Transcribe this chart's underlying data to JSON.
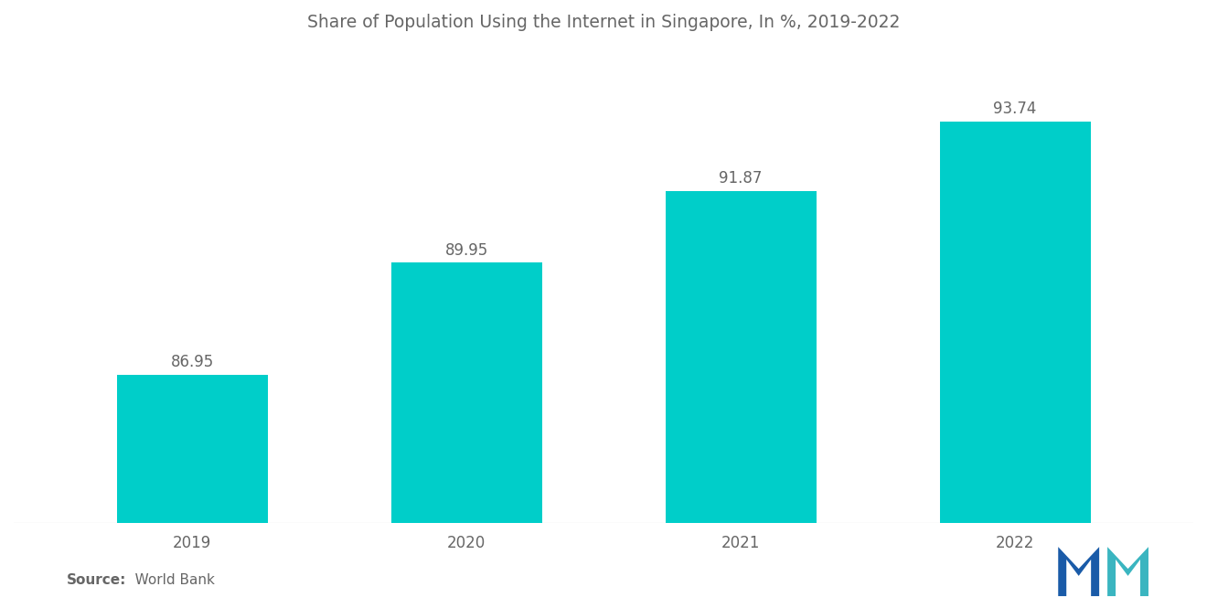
{
  "title": "Share of Population Using the Internet in Singapore, In %, 2019-2022",
  "categories": [
    "2019",
    "2020",
    "2021",
    "2022"
  ],
  "values": [
    86.95,
    89.95,
    91.87,
    93.74
  ],
  "bar_color": "#00CEC9",
  "value_labels": [
    "86.95",
    "89.95",
    "91.87",
    "93.74"
  ],
  "ylim_min": 83.0,
  "ylim_max": 95.5,
  "title_fontsize": 13.5,
  "label_fontsize": 12,
  "tick_fontsize": 12,
  "source_bold": "Source:",
  "source_text": "   World Bank",
  "background_color": "#ffffff",
  "text_color": "#666666",
  "bar_width": 0.55,
  "logo_left_color": "#1a5ba8",
  "logo_right_color": "#3ab5c0"
}
